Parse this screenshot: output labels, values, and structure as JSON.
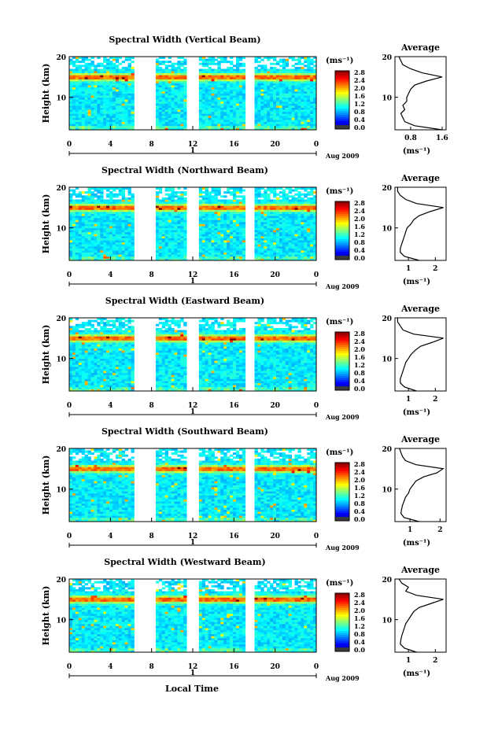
{
  "figure": {
    "y_label": "Height (km)",
    "x_label": "Local Time",
    "date_label": "Aug 2009",
    "day_label": "1",
    "unit_label": "(ms⁻¹)",
    "average_title": "Average",
    "average_xlabel": "(ms⁻¹)"
  },
  "chart_data": [
    {
      "type": "heatmap",
      "beam": "vertical",
      "title": "Spectral Width (Vertical Beam)",
      "x_ticks": [
        "0",
        "4",
        "8",
        "12",
        "16",
        "20",
        "0"
      ],
      "xlim": [
        0,
        24
      ],
      "y_ticks": [
        "20",
        "10"
      ],
      "ylim": [
        2,
        20
      ],
      "colorbar_ticks": [
        "2.8",
        "2.4",
        "2.0",
        "1.6",
        "1.2",
        "0.8",
        "0.4",
        "0.0"
      ],
      "clim": [
        0,
        2.8
      ],
      "data_gaps_hours": [
        [
          6.3,
          8.5
        ],
        [
          11.3,
          12.6
        ],
        [
          17.0,
          17.9
        ]
      ],
      "enhanced_layer_km": 15,
      "average": {
        "title": "Average",
        "x_ticks": [
          "0.8",
          "1.6"
        ],
        "xlim": [
          0.4,
          1.7
        ],
        "profile": [
          [
            2,
            1.6
          ],
          [
            3,
            0.9
          ],
          [
            4,
            0.65
          ],
          [
            5,
            0.6
          ],
          [
            6,
            0.55
          ],
          [
            7,
            0.65
          ],
          [
            8,
            0.6
          ],
          [
            9,
            0.7
          ],
          [
            10,
            0.7
          ],
          [
            11,
            0.75
          ],
          [
            12,
            0.8
          ],
          [
            13,
            0.9
          ],
          [
            14,
            1.2
          ],
          [
            15,
            1.6
          ],
          [
            16,
            1.1
          ],
          [
            17,
            0.8
          ],
          [
            18,
            0.6
          ],
          [
            19,
            0.55
          ],
          [
            20,
            0.5
          ]
        ]
      }
    },
    {
      "type": "heatmap",
      "beam": "northward",
      "title": "Spectral Width (Northward Beam)",
      "x_ticks": [
        "0",
        "4",
        "8",
        "12",
        "16",
        "20",
        "0"
      ],
      "xlim": [
        0,
        24
      ],
      "y_ticks": [
        "20",
        "10"
      ],
      "ylim": [
        2,
        20
      ],
      "colorbar_ticks": [
        "2.8",
        "2.4",
        "2.0",
        "1.6",
        "1.2",
        "0.8",
        "0.4",
        "0.0"
      ],
      "clim": [
        0,
        2.8
      ],
      "data_gaps_hours": [
        [
          6.3,
          8.5
        ],
        [
          11.3,
          12.6
        ],
        [
          17.0,
          17.9
        ]
      ],
      "enhanced_layer_km": 15,
      "average": {
        "title": "Average",
        "x_ticks": [
          "1",
          "2"
        ],
        "xlim": [
          0.5,
          2.4
        ],
        "profile": [
          [
            2,
            1.4
          ],
          [
            3,
            0.85
          ],
          [
            4,
            0.7
          ],
          [
            5,
            0.7
          ],
          [
            6,
            0.75
          ],
          [
            7,
            0.8
          ],
          [
            8,
            0.85
          ],
          [
            9,
            0.9
          ],
          [
            10,
            0.95
          ],
          [
            11,
            1.1
          ],
          [
            12,
            1.2
          ],
          [
            13,
            1.4
          ],
          [
            14,
            1.8
          ],
          [
            15,
            2.3
          ],
          [
            16,
            1.3
          ],
          [
            17,
            0.9
          ],
          [
            18,
            0.7
          ],
          [
            19,
            0.6
          ],
          [
            20,
            0.6
          ]
        ]
      }
    },
    {
      "type": "heatmap",
      "beam": "eastward",
      "title": "Spectral Width (Eastward Beam)",
      "x_ticks": [
        "0",
        "4",
        "8",
        "12",
        "16",
        "20",
        "0"
      ],
      "xlim": [
        0,
        24
      ],
      "y_ticks": [
        "20",
        "10"
      ],
      "ylim": [
        2,
        20
      ],
      "colorbar_ticks": [
        "2.8",
        "2.4",
        "2.0",
        "1.6",
        "1.2",
        "0.8",
        "0.4",
        "0.0"
      ],
      "clim": [
        0,
        2.8
      ],
      "data_gaps_hours": [
        [
          6.3,
          8.5
        ],
        [
          11.3,
          12.6
        ],
        [
          17.0,
          17.9
        ]
      ],
      "enhanced_layer_km": 15,
      "average": {
        "title": "Average",
        "x_ticks": [
          "1",
          "2"
        ],
        "xlim": [
          0.5,
          2.4
        ],
        "profile": [
          [
            2,
            1.3
          ],
          [
            3,
            0.85
          ],
          [
            4,
            0.7
          ],
          [
            5,
            0.7
          ],
          [
            6,
            0.75
          ],
          [
            7,
            0.8
          ],
          [
            8,
            0.85
          ],
          [
            9,
            0.9
          ],
          [
            10,
            1.0
          ],
          [
            11,
            1.1
          ],
          [
            12,
            1.25
          ],
          [
            13,
            1.45
          ],
          [
            14,
            1.9
          ],
          [
            15,
            2.3
          ],
          [
            16,
            1.2
          ],
          [
            17,
            0.8
          ],
          [
            18,
            0.7
          ],
          [
            19,
            0.6
          ],
          [
            20,
            0.6
          ]
        ]
      }
    },
    {
      "type": "heatmap",
      "beam": "southward",
      "title": "Spectral Width (Southward Beam)",
      "x_ticks": [
        "0",
        "4",
        "8",
        "12",
        "16",
        "20",
        "0"
      ],
      "xlim": [
        0,
        24
      ],
      "y_ticks": [
        "20",
        "10"
      ],
      "ylim": [
        2,
        20
      ],
      "colorbar_ticks": [
        "2.8",
        "2.4",
        "2.0",
        "1.6",
        "1.2",
        "0.8",
        "0.4",
        "0.0"
      ],
      "clim": [
        0,
        2.8
      ],
      "data_gaps_hours": [
        [
          6.3,
          8.5
        ],
        [
          11.3,
          12.6
        ],
        [
          17.0,
          17.9
        ]
      ],
      "enhanced_layer_km": 15,
      "average": {
        "title": "Average",
        "x_ticks": [
          "1",
          "2"
        ],
        "xlim": [
          0.5,
          2.2
        ],
        "profile": [
          [
            2,
            1.3
          ],
          [
            3,
            0.8
          ],
          [
            4,
            0.7
          ],
          [
            5,
            0.72
          ],
          [
            6,
            0.75
          ],
          [
            7,
            0.8
          ],
          [
            8,
            0.85
          ],
          [
            9,
            0.95
          ],
          [
            10,
            1.0
          ],
          [
            11,
            1.1
          ],
          [
            12,
            1.2
          ],
          [
            13,
            1.45
          ],
          [
            14,
            1.9
          ],
          [
            15,
            2.1
          ],
          [
            16,
            1.2
          ],
          [
            17,
            0.85
          ],
          [
            18,
            0.75
          ],
          [
            19,
            0.7
          ],
          [
            20,
            0.65
          ]
        ]
      }
    },
    {
      "type": "heatmap",
      "beam": "westward",
      "title": "Spectral Width (Westward Beam)",
      "x_ticks": [
        "0",
        "4",
        "8",
        "12",
        "16",
        "20",
        "0"
      ],
      "xlim": [
        0,
        24
      ],
      "y_ticks": [
        "20",
        "10"
      ],
      "ylim": [
        2,
        20
      ],
      "colorbar_ticks": [
        "2.8",
        "2.4",
        "2.0",
        "1.6",
        "1.2",
        "0.8",
        "0.4",
        "0.0"
      ],
      "clim": [
        0,
        2.8
      ],
      "data_gaps_hours": [
        [
          6.3,
          8.5
        ],
        [
          11.3,
          12.6
        ],
        [
          17.0,
          17.9
        ]
      ],
      "enhanced_layer_km": 15,
      "average": {
        "title": "Average",
        "x_ticks": [
          "1",
          "2"
        ],
        "xlim": [
          0.5,
          2.4
        ],
        "profile": [
          [
            2,
            1.3
          ],
          [
            3,
            0.85
          ],
          [
            4,
            0.7
          ],
          [
            5,
            0.72
          ],
          [
            6,
            0.75
          ],
          [
            7,
            0.8
          ],
          [
            8,
            0.85
          ],
          [
            9,
            0.9
          ],
          [
            10,
            1.0
          ],
          [
            11,
            1.1
          ],
          [
            12,
            1.2
          ],
          [
            13,
            1.4
          ],
          [
            14,
            1.85
          ],
          [
            15,
            2.3
          ],
          [
            16,
            1.3
          ],
          [
            17,
            0.9
          ],
          [
            18,
            1.0
          ],
          [
            19,
            0.75
          ],
          [
            20,
            0.65
          ]
        ]
      }
    }
  ]
}
